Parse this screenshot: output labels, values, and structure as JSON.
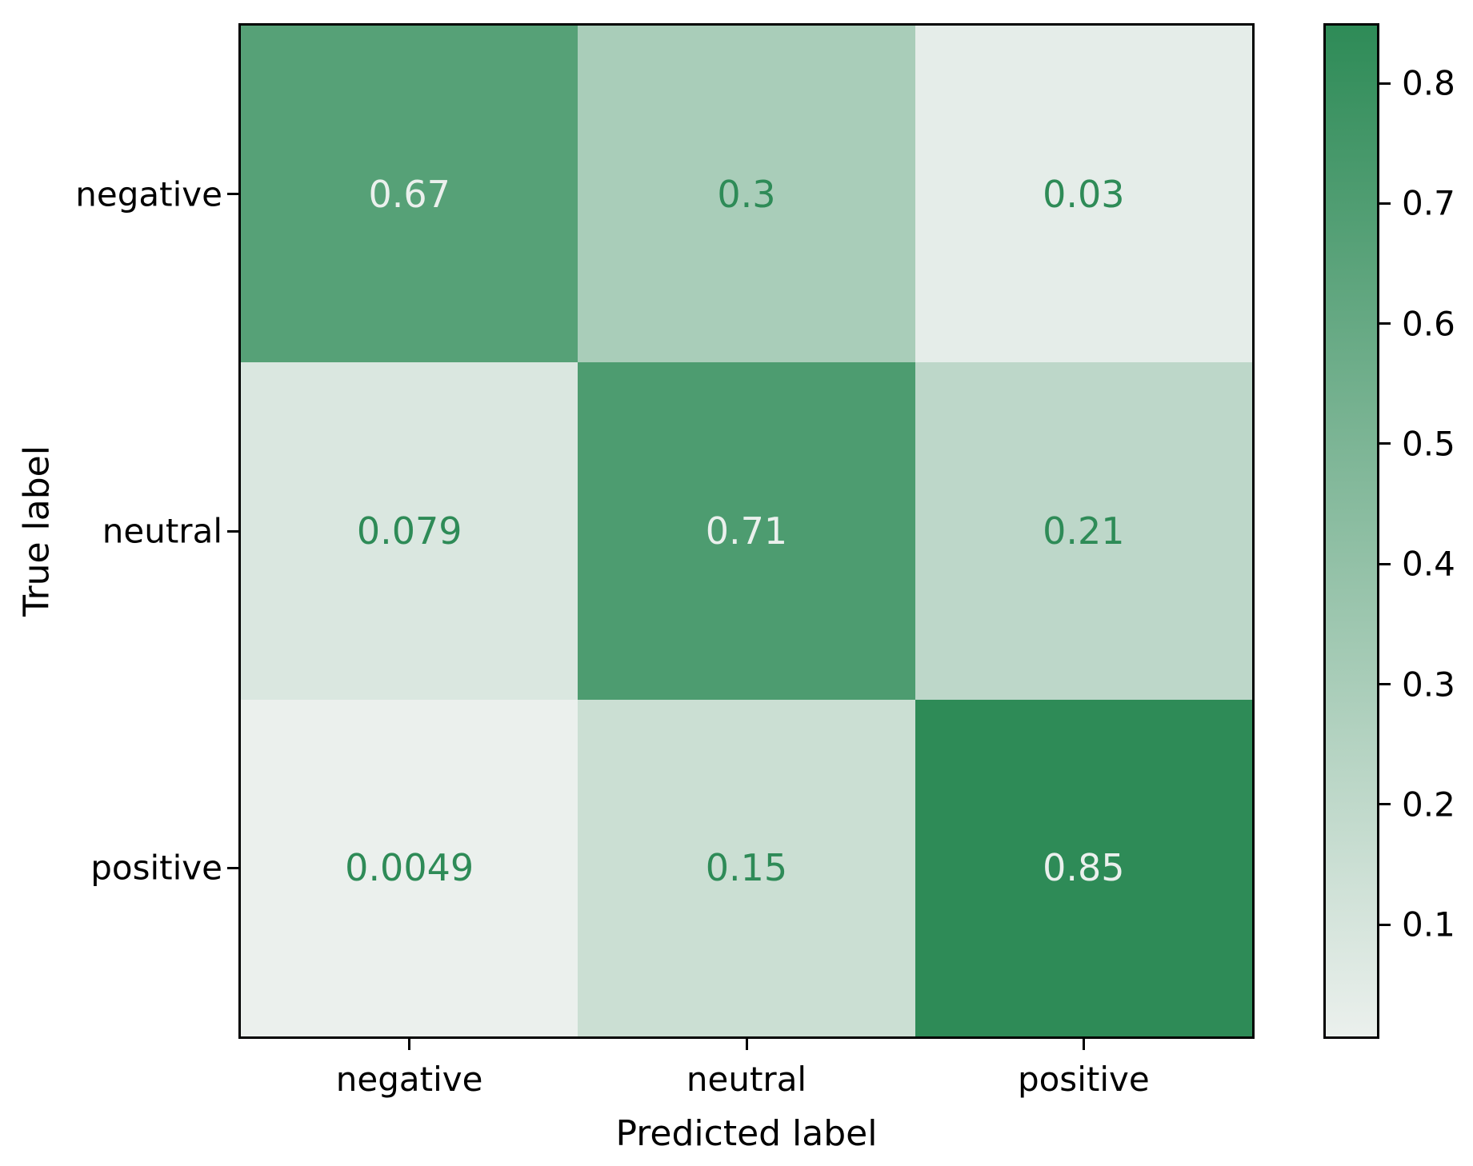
{
  "chart_data": {
    "type": "heatmap",
    "subtype": "confusion-matrix",
    "title": "",
    "xlabel": "Predicted label",
    "ylabel": "True label",
    "x_categories": [
      "negative",
      "neutral",
      "positive"
    ],
    "y_categories": [
      "negative",
      "neutral",
      "positive"
    ],
    "matrix": [
      [
        0.67,
        0.3,
        0.03
      ],
      [
        0.079,
        0.71,
        0.21
      ],
      [
        0.0049,
        0.15,
        0.85
      ]
    ],
    "cell_labels": [
      [
        "0.67",
        "0.3",
        "0.03"
      ],
      [
        "0.079",
        "0.71",
        "0.21"
      ],
      [
        "0.0049",
        "0.15",
        "0.85"
      ]
    ],
    "vmin": 0.0049,
    "vmax": 0.85,
    "colormap": {
      "name": "light-seagreen",
      "start": "#ebf0ed",
      "end": "#2e8b57"
    },
    "annotation_colors": {
      "light": "#ebf0ed",
      "dark": "#2e8b57"
    },
    "colorbar": {
      "position": "right",
      "ticks": [
        0.8,
        0.7,
        0.6,
        0.5,
        0.4,
        0.3,
        0.2,
        0.1
      ],
      "tick_labels": [
        "0.8",
        "0.7",
        "0.6",
        "0.5",
        "0.4",
        "0.3",
        "0.2",
        "0.1"
      ]
    },
    "grid": false,
    "background_color": "#ffffff",
    "spine_color": "#000000"
  }
}
